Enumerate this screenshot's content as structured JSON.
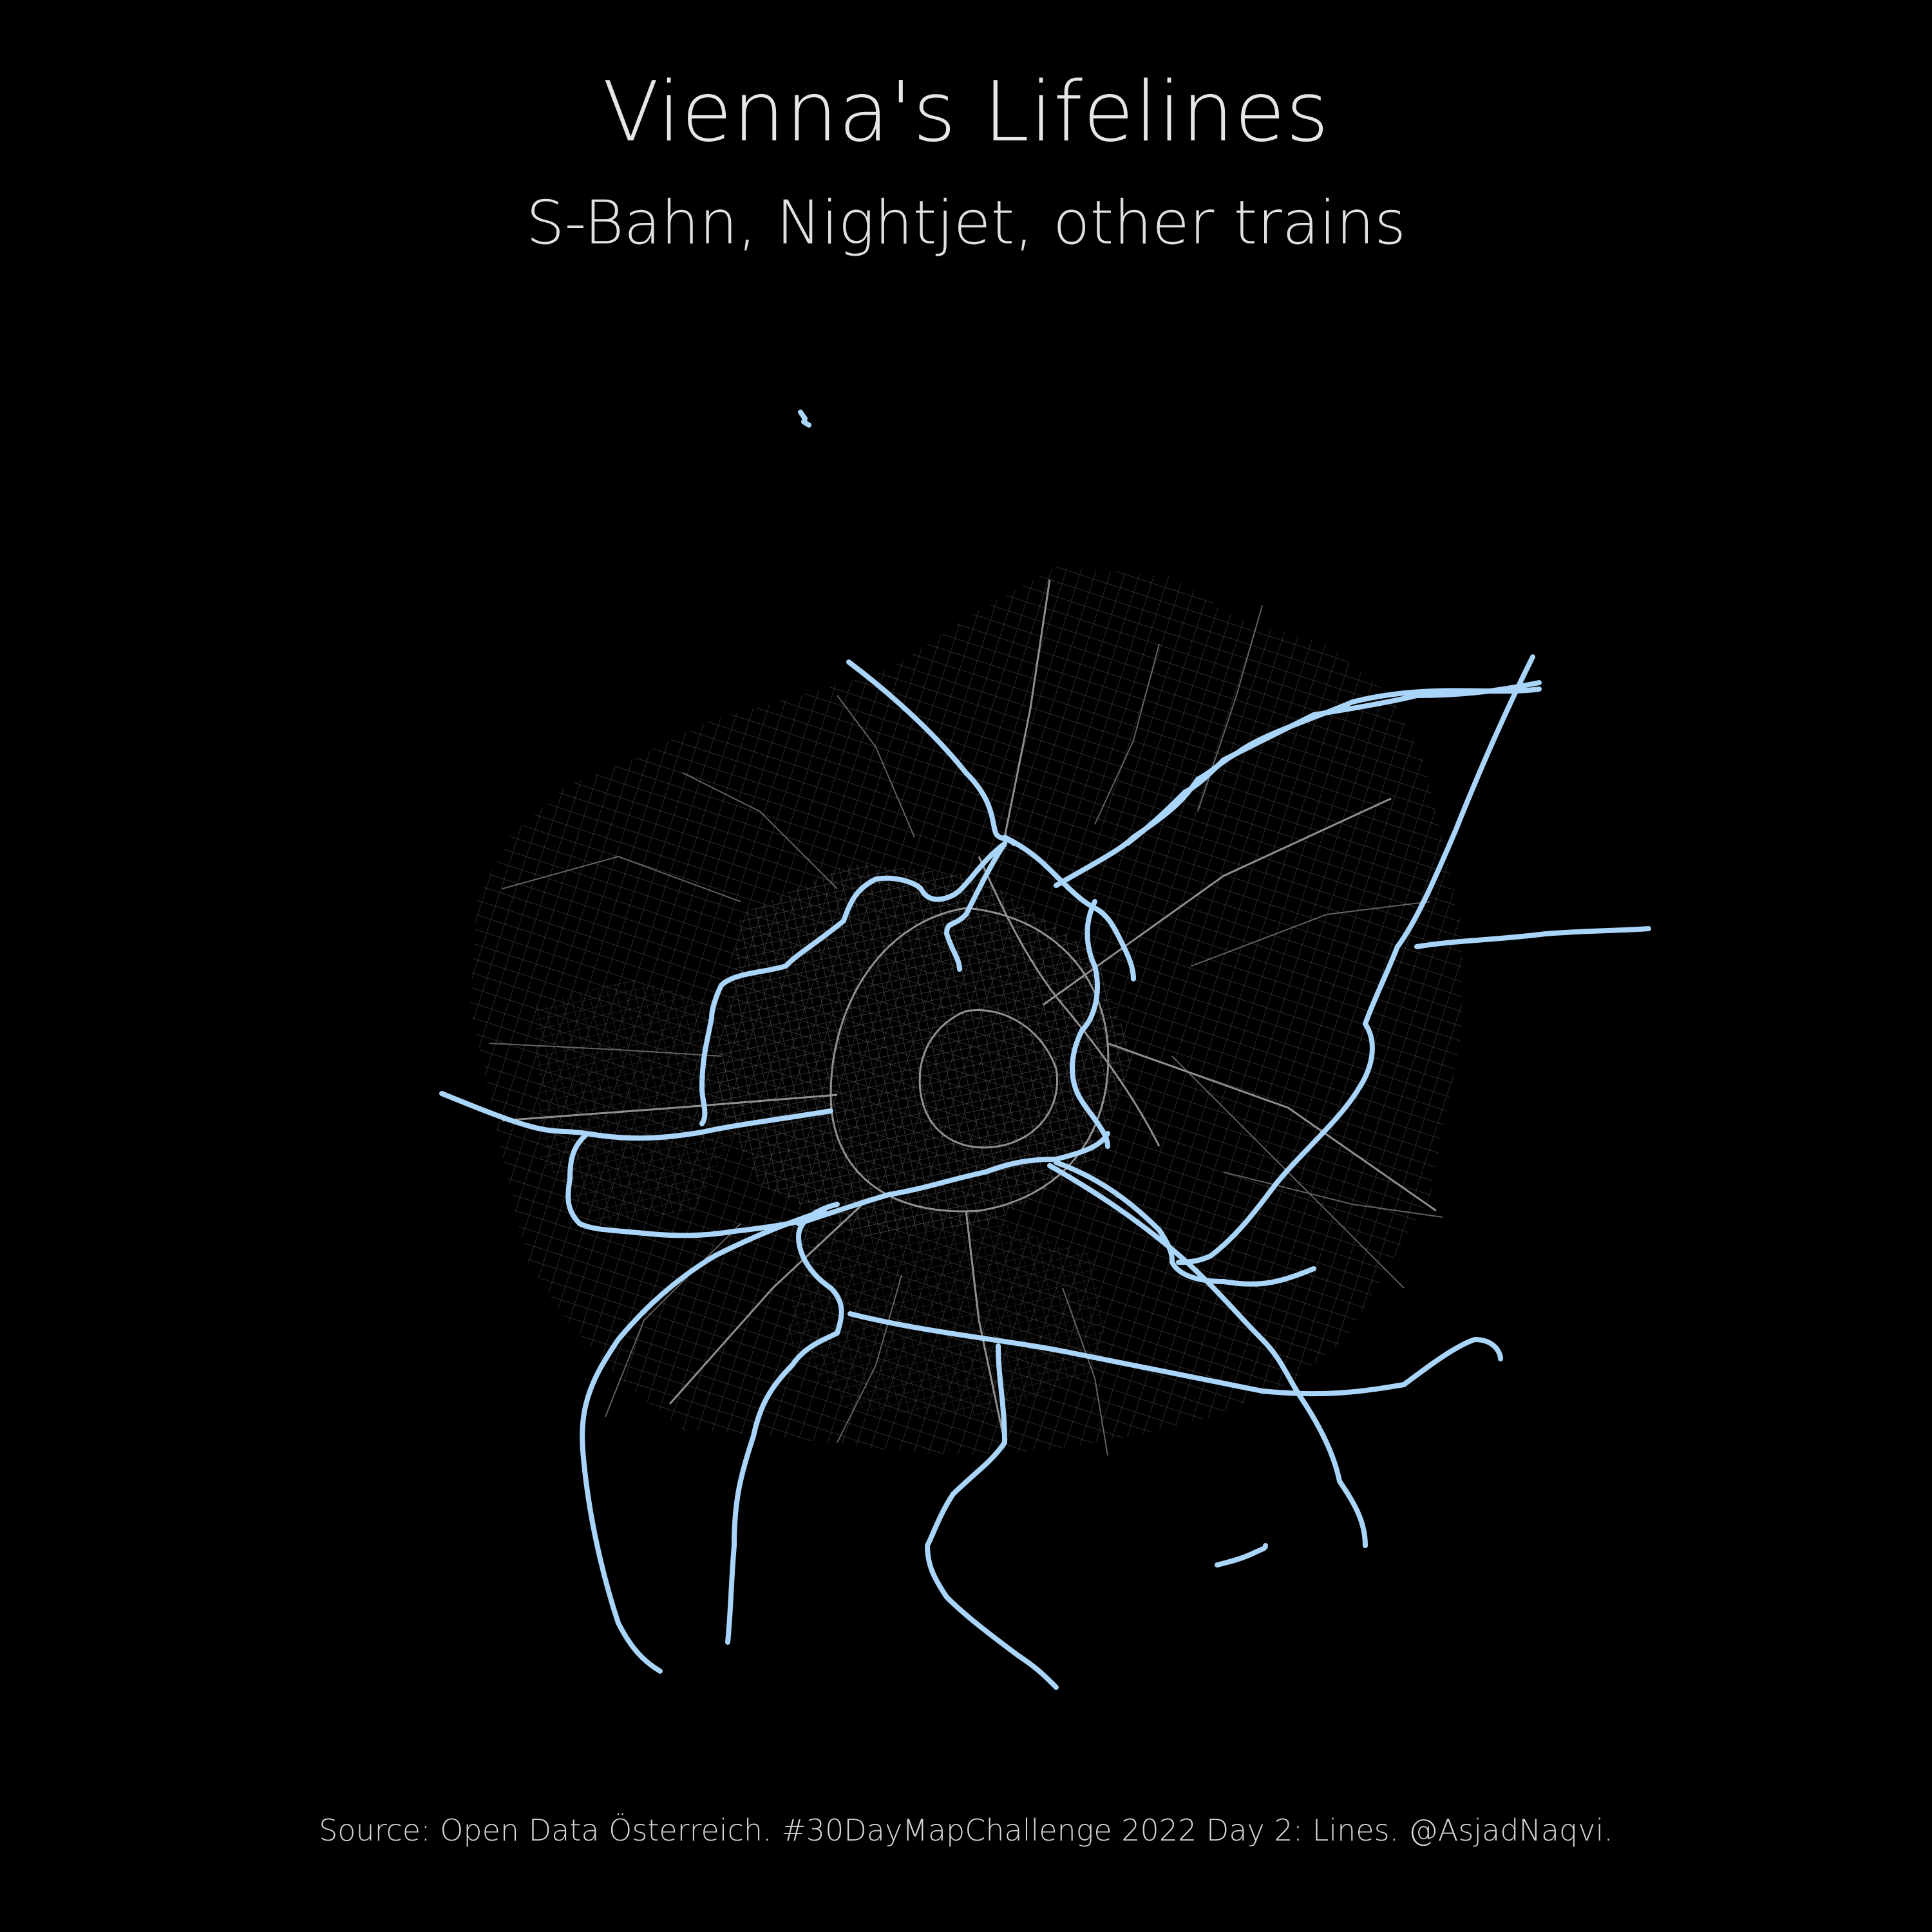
{
  "title": "Vienna's Lifelines",
  "subtitle": "S-Bahn, Nightjet, other trains",
  "caption": "Source: Open Data Österreich. #30DayMapChallenge 2022 Day 2: Lines. @AsjadNaqvi.",
  "colors": {
    "background": "#000000",
    "rail": "#a9d5fb",
    "street": "#5a5a5a",
    "street_major": "#bdbdbd",
    "text": "#e6e6e6"
  },
  "layers": [
    "street-network",
    "rail-lines"
  ]
}
